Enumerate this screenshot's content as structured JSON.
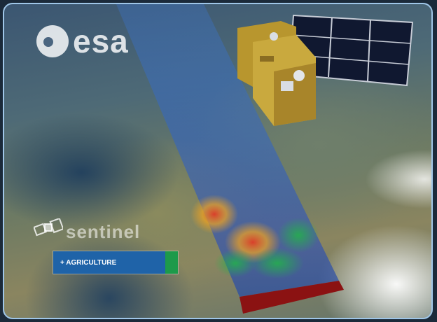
{
  "logo": {
    "text": "esa"
  },
  "mission": {
    "name": "sentinel"
  },
  "tag": {
    "label": "+ AGRICULTURE",
    "main_color": "#1f63a8",
    "accent_color": "#1d9a4a"
  },
  "icons": [
    "esa-logo-icon",
    "sentinel-satellite-icon",
    "satellite-illustration",
    "imaging-swath",
    "ground-footprint"
  ],
  "colors": {
    "swath_blue": "#2f6fd6",
    "footprint_red": "#8b1212",
    "frame_border": "#9fc6e8"
  }
}
